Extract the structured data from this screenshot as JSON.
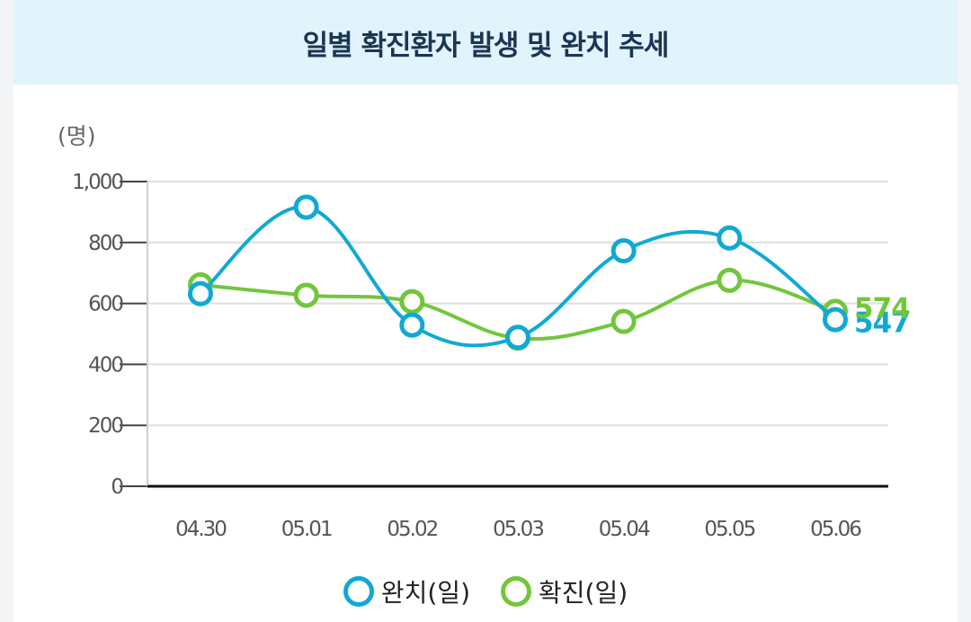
{
  "header": {
    "title": "일별 확진환자 발생 및 완치 추세"
  },
  "colors": {
    "recovered": "#11a9d4",
    "confirmed": "#72c63c"
  },
  "chart_data": {
    "type": "line",
    "title": "일별 확진환자 발생 및 완치 추세",
    "ylabel": "(명)",
    "xlabel": "",
    "ylim": [
      0,
      1000
    ],
    "yticks": [
      0,
      200,
      400,
      600,
      800,
      1000
    ],
    "ytick_labels": [
      "0",
      "200",
      "400",
      "600",
      "800",
      "1,000"
    ],
    "categories": [
      "04.30",
      "05.01",
      "05.02",
      "05.03",
      "05.04",
      "05.05",
      "05.06"
    ],
    "grid": true,
    "legend": "bottom-center",
    "series": [
      {
        "key": "recovered",
        "name": "완치(일)",
        "values": [
          632,
          916,
          529,
          489,
          773,
          815,
          547
        ],
        "end_label": "547"
      },
      {
        "key": "confirmed",
        "name": "확진(일)",
        "values": [
          661,
          627,
          606,
          486,
          541,
          676,
          574
        ],
        "end_label": "574"
      }
    ]
  },
  "legend": {
    "items": [
      {
        "key": "recovered",
        "label": "완치(일)"
      },
      {
        "key": "confirmed",
        "label": "확진(일)"
      }
    ]
  }
}
